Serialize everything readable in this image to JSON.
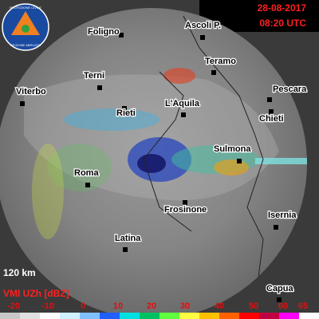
{
  "header": {
    "date": "28-08-2017",
    "time": "08:20 UTC"
  },
  "logo": {
    "top": "PROTEZIONE CIVILE",
    "bottom": "REGIONE ABRUZZO"
  },
  "cities": [
    {
      "label": "Foligno"
    },
    {
      "label": "Ascoli P."
    },
    {
      "label": "Teramo"
    },
    {
      "label": "Pescara"
    },
    {
      "label": "Terni"
    },
    {
      "label": "Viterbo"
    },
    {
      "label": "Rieti"
    },
    {
      "label": "L'Aquila"
    },
    {
      "label": "Chieti"
    },
    {
      "label": "Sulmona"
    },
    {
      "label": "Roma"
    },
    {
      "label": "Frosinone"
    },
    {
      "label": "Isernia"
    },
    {
      "label": "Latina"
    },
    {
      "label": "Capua"
    }
  ],
  "range_label": "120 km",
  "legend": {
    "title": "VMI UZh [dBZ]",
    "ticks": [
      -20,
      -10,
      0,
      10,
      20,
      30,
      40,
      50,
      60,
      65
    ]
  }
}
